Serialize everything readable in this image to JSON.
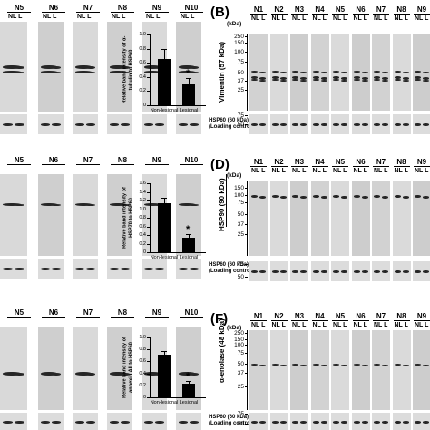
{
  "panels": {
    "B": {
      "letter": "(B)",
      "protein": "Vimentin (57 kDa)",
      "lanes": [
        "N1",
        "N2",
        "N3",
        "N4",
        "N5",
        "N6",
        "N7",
        "N8",
        "N9"
      ],
      "markers": [
        "250",
        "150",
        "100",
        "75",
        "50",
        "37",
        "25",
        "75",
        "50"
      ]
    },
    "D": {
      "letter": "(D)",
      "protein": "HSP90 (90 kDa)",
      "lanes": [
        "N1",
        "N2",
        "N3",
        "N4",
        "N5",
        "N6",
        "N7",
        "N8",
        "N9"
      ],
      "markers": [
        "150",
        "100",
        "75",
        "50",
        "37",
        "25",
        "75",
        "50"
      ]
    },
    "F": {
      "letter": "(F)",
      "protein": "α-enolase (48 kDa)",
      "lanes": [
        "N1",
        "N2",
        "N3",
        "N4",
        "N5",
        "N6",
        "N7",
        "N8",
        "N9"
      ],
      "markers": [
        "250",
        "150",
        "100",
        "75",
        "50",
        "37",
        "25",
        "75",
        "50"
      ]
    }
  },
  "left_lanes": [
    "N5",
    "N6",
    "N7",
    "N8",
    "N9",
    "N10"
  ],
  "lane_sub": "NL  L",
  "kda": "(kDa)",
  "loading_control": {
    "line1": "HSP60 (60 kDa)",
    "line2": "(Loading control)"
  },
  "chart_data": [
    {
      "type": "bar",
      "categories": [
        "Non-lesional",
        "Lesional"
      ],
      "values": [
        0.65,
        0.29
      ],
      "errors": [
        0.14,
        0.1
      ],
      "ylabel": "Relative band intensity of α-tubulin to HSP60",
      "ylim": [
        0,
        1.0
      ],
      "yticks": [
        "0",
        "0.2",
        "0.4",
        "0.6",
        "0.8",
        "1.0"
      ],
      "significance": "*"
    },
    {
      "type": "bar",
      "categories": [
        "Non-lesional",
        "Lesional"
      ],
      "values": [
        1.13,
        0.33
      ],
      "errors": [
        0.13,
        0.09
      ],
      "ylabel": "Relative band intensity of HSP70 to HSP60",
      "ylim": [
        0,
        1.6
      ],
      "yticks": [
        "0",
        "0.2",
        "0.4",
        "0.6",
        "0.8",
        "1.0",
        "1.2",
        "1.4",
        "1.6"
      ],
      "significance": "*"
    },
    {
      "type": "bar",
      "categories": [
        "Non-lesional",
        "Lesional"
      ],
      "values": [
        0.71,
        0.23
      ],
      "errors": [
        0.06,
        0.04
      ],
      "ylabel": "Relative band intensity of annexin AII to HSP60",
      "ylim": [
        0,
        1.0
      ],
      "yticks": [
        "0",
        "0.2",
        "0.4",
        "0.6",
        "0.8",
        "1.0"
      ],
      "significance": "*"
    }
  ]
}
